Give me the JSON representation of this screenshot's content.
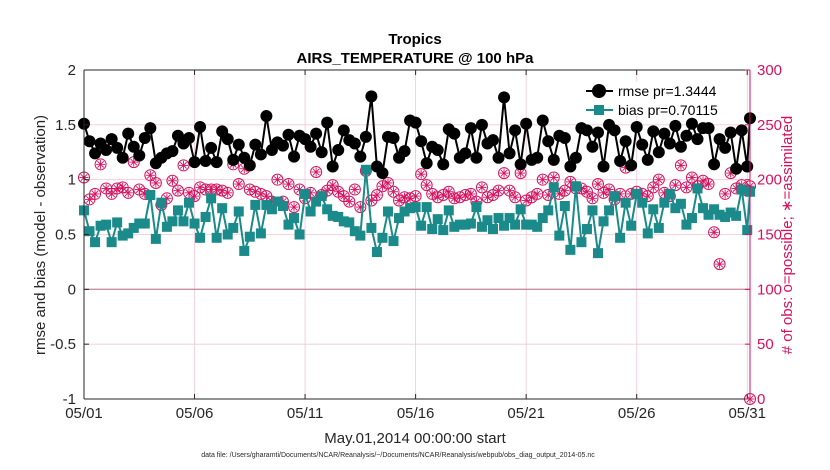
{
  "chart_data": {
    "type": "line",
    "title": "Tropics",
    "subtitle": "AIRS_TEMPERATURE @ 100 hPa",
    "xlabel": "May.01,2014 00:00:00 start",
    "ylabel": "rmse and bias (model - observation)",
    "ylabel_right": "# of obs: o=possible; ∗=assimilated",
    "footnote": "data file: /Users/gharamti/Documents/NCAR/Reanalysis/~/Documents/NCAR/Reanalysis/webpub/obs_diag_output_2014-05.nc",
    "x_tick_labels": [
      "05/01",
      "05/06",
      "05/11",
      "05/16",
      "05/21",
      "05/26",
      "05/31"
    ],
    "x_tick_days": [
      1,
      6,
      11,
      16,
      21,
      26,
      31
    ],
    "xlim": [
      1,
      31.125
    ],
    "ylim": [
      -1,
      2
    ],
    "y_ticks": [
      -1,
      -0.5,
      0,
      0.5,
      1,
      1.5,
      2
    ],
    "y_tick_labels": [
      "-1",
      "-0.5",
      "0",
      "0.5",
      "1",
      "1.5",
      "2"
    ],
    "ylim_right": [
      0,
      300
    ],
    "y_ticks_right": [
      0,
      50,
      100,
      150,
      200,
      250,
      300
    ],
    "y_tick_labels_right": [
      "0",
      "50",
      "100",
      "150",
      "200",
      "250",
      "300"
    ],
    "grid": true,
    "legend_position": "top-right",
    "zero_line": 0,
    "colors": {
      "rmse": "#000000",
      "bias": "#1a8a8a",
      "obs": "#d6125f",
      "grid": "#f2c6d6",
      "axis": "#262626"
    },
    "series": [
      {
        "name": "rmse pr=1.3444",
        "axis": "left",
        "color": "#000000",
        "marker": "circle",
        "x": [
          1.0,
          1.25,
          1.5,
          1.75,
          2.0,
          2.25,
          2.5,
          2.75,
          3.0,
          3.25,
          3.5,
          3.75,
          4.0,
          4.25,
          4.5,
          4.75,
          5.0,
          5.25,
          5.5,
          5.75,
          6.0,
          6.25,
          6.5,
          6.75,
          7.0,
          7.25,
          7.5,
          7.75,
          8.0,
          8.25,
          8.5,
          8.75,
          9.0,
          9.25,
          9.5,
          9.75,
          10.0,
          10.25,
          10.5,
          10.75,
          11.0,
          11.25,
          11.5,
          11.75,
          12.0,
          12.25,
          12.5,
          12.75,
          13.0,
          13.25,
          13.5,
          13.75,
          14.0,
          14.25,
          14.5,
          14.75,
          15.0,
          15.25,
          15.5,
          15.75,
          16.0,
          16.25,
          16.5,
          16.75,
          17.0,
          17.25,
          17.5,
          17.75,
          18.0,
          18.25,
          18.5,
          18.75,
          19.0,
          19.25,
          19.5,
          19.75,
          20.0,
          20.25,
          20.5,
          20.75,
          21.0,
          21.25,
          21.5,
          21.75,
          22.0,
          22.25,
          22.5,
          22.75,
          23.0,
          23.25,
          23.5,
          23.75,
          24.0,
          24.25,
          24.5,
          24.75,
          25.0,
          25.25,
          25.5,
          25.75,
          26.0,
          26.25,
          26.5,
          26.75,
          27.0,
          27.25,
          27.5,
          27.75,
          28.0,
          28.25,
          28.5,
          28.75,
          29.0,
          29.25,
          29.5,
          29.75,
          30.0,
          30.25,
          30.5,
          30.75,
          31.0,
          31.125
        ],
        "y": [
          1.51,
          1.35,
          1.24,
          1.33,
          1.27,
          1.37,
          1.29,
          1.2,
          1.42,
          1.3,
          1.22,
          1.38,
          1.47,
          1.15,
          1.2,
          1.24,
          1.26,
          1.4,
          1.33,
          1.38,
          1.16,
          1.48,
          1.17,
          1.29,
          1.16,
          1.44,
          1.37,
          1.18,
          1.32,
          1.2,
          1.13,
          1.32,
          1.23,
          1.58,
          1.27,
          1.34,
          1.31,
          1.41,
          1.21,
          1.4,
          1.37,
          1.3,
          1.42,
          1.25,
          1.52,
          1.12,
          1.27,
          1.45,
          1.36,
          1.33,
          1.21,
          1.39,
          1.76,
          1.12,
          1.06,
          1.39,
          1.38,
          1.2,
          1.26,
          1.54,
          1.52,
          1.35,
          1.15,
          1.3,
          1.27,
          1.14,
          1.46,
          1.42,
          1.2,
          1.24,
          1.47,
          1.2,
          1.5,
          1.33,
          1.36,
          1.2,
          1.75,
          1.24,
          1.45,
          1.14,
          1.51,
          1.18,
          1.2,
          1.54,
          1.35,
          1.18,
          1.4,
          1.38,
          1.12,
          1.2,
          1.47,
          1.45,
          1.3,
          1.43,
          1.12,
          1.5,
          1.45,
          1.17,
          1.35,
          1.13,
          1.48,
          1.32,
          1.18,
          1.44,
          1.25,
          1.42,
          1.33,
          1.49,
          1.3,
          1.4,
          1.51,
          1.37,
          1.47,
          1.47,
          1.14,
          1.37,
          1.29,
          1.43,
          1.1,
          1.45,
          1.12,
          1.56
        ]
      },
      {
        "name": "bias pr=0.70115",
        "axis": "left",
        "color": "#1a8a8a",
        "marker": "square",
        "x": [
          1.0,
          1.25,
          1.5,
          1.75,
          2.0,
          2.25,
          2.5,
          2.75,
          3.0,
          3.25,
          3.5,
          3.75,
          4.0,
          4.25,
          4.5,
          4.75,
          5.0,
          5.25,
          5.5,
          5.75,
          6.0,
          6.25,
          6.5,
          6.75,
          7.0,
          7.25,
          7.5,
          7.75,
          8.0,
          8.25,
          8.5,
          8.75,
          9.0,
          9.25,
          9.5,
          9.75,
          10.0,
          10.25,
          10.5,
          10.75,
          11.0,
          11.25,
          11.5,
          11.75,
          12.0,
          12.25,
          12.5,
          12.75,
          13.0,
          13.25,
          13.5,
          13.75,
          14.0,
          14.25,
          14.5,
          14.75,
          15.0,
          15.25,
          15.5,
          15.75,
          16.0,
          16.25,
          16.5,
          16.75,
          17.0,
          17.25,
          17.5,
          17.75,
          18.0,
          18.25,
          18.5,
          18.75,
          19.0,
          19.25,
          19.5,
          19.75,
          20.0,
          20.25,
          20.5,
          20.75,
          21.0,
          21.25,
          21.5,
          21.75,
          22.0,
          22.25,
          22.5,
          22.75,
          23.0,
          23.25,
          23.5,
          23.75,
          24.0,
          24.25,
          24.5,
          24.75,
          25.0,
          25.25,
          25.5,
          25.75,
          26.0,
          26.25,
          26.5,
          26.75,
          27.0,
          27.25,
          27.5,
          27.75,
          28.0,
          28.25,
          28.5,
          28.75,
          29.0,
          29.25,
          29.5,
          29.75,
          30.0,
          30.25,
          30.5,
          30.75,
          31.0,
          31.125
        ],
        "y": [
          0.72,
          0.53,
          0.43,
          0.58,
          0.59,
          0.43,
          0.61,
          0.49,
          0.51,
          0.56,
          0.6,
          0.6,
          0.86,
          0.46,
          0.79,
          0.57,
          0.62,
          0.72,
          0.62,
          0.79,
          0.6,
          0.47,
          0.66,
          0.83,
          0.47,
          0.74,
          0.5,
          0.56,
          0.71,
          0.35,
          0.48,
          0.77,
          0.51,
          0.77,
          0.73,
          0.8,
          0.76,
          0.59,
          0.65,
          0.5,
          0.87,
          0.71,
          0.8,
          0.85,
          0.73,
          0.67,
          0.66,
          0.62,
          0.61,
          0.53,
          0.49,
          1.09,
          0.56,
          0.34,
          0.47,
          0.71,
          0.44,
          0.65,
          0.71,
          0.74,
          0.75,
          0.58,
          0.75,
          0.55,
          0.64,
          0.54,
          0.72,
          0.57,
          0.59,
          0.59,
          0.6,
          0.75,
          0.57,
          0.63,
          0.55,
          0.65,
          0.58,
          0.65,
          0.59,
          0.73,
          0.59,
          0.59,
          0.57,
          0.65,
          0.72,
          0.93,
          0.49,
          0.76,
          0.36,
          0.94,
          0.43,
          0.55,
          0.72,
          0.33,
          0.62,
          0.72,
          0.85,
          0.47,
          0.79,
          0.58,
          0.87,
          0.79,
          0.51,
          0.73,
          0.56,
          0.79,
          0.87,
          0.74,
          0.78,
          0.59,
          0.65,
          0.92,
          0.74,
          0.68,
          0.73,
          0.68,
          0.66,
          0.7,
          0.67,
          0.91,
          0.54,
          0.89
        ]
      },
      {
        "name": "possible",
        "axis": "right",
        "color": "#d6125f",
        "marker": "circle-open",
        "x": [
          1.0,
          1.25,
          1.5,
          1.75,
          2.0,
          2.25,
          2.5,
          2.75,
          3.0,
          3.25,
          3.5,
          3.75,
          4.0,
          4.25,
          4.5,
          4.75,
          5.0,
          5.25,
          5.5,
          5.75,
          6.0,
          6.25,
          6.5,
          6.75,
          7.0,
          7.25,
          7.5,
          7.75,
          8.0,
          8.25,
          8.5,
          8.75,
          9.0,
          9.25,
          9.5,
          9.75,
          10.0,
          10.25,
          10.5,
          10.75,
          11.0,
          11.25,
          11.5,
          11.75,
          12.0,
          12.25,
          12.5,
          12.75,
          13.0,
          13.25,
          13.5,
          13.75,
          14.0,
          14.25,
          14.5,
          14.75,
          15.0,
          15.25,
          15.5,
          15.75,
          16.0,
          16.25,
          16.5,
          16.75,
          17.0,
          17.25,
          17.5,
          17.75,
          18.0,
          18.25,
          18.5,
          18.75,
          19.0,
          19.25,
          19.5,
          19.75,
          20.0,
          20.25,
          20.5,
          20.75,
          21.0,
          21.25,
          21.5,
          21.75,
          22.0,
          22.25,
          22.5,
          22.75,
          23.0,
          23.25,
          23.5,
          23.75,
          24.0,
          24.25,
          24.5,
          24.75,
          25.0,
          25.25,
          25.5,
          25.75,
          26.0,
          26.25,
          26.5,
          26.75,
          27.0,
          27.25,
          27.5,
          27.75,
          28.0,
          28.25,
          28.5,
          28.75,
          29.0,
          29.25,
          29.5,
          29.75,
          30.0,
          30.25,
          30.5,
          30.75,
          31.0,
          31.125
        ],
        "y": [
          202,
          182,
          187,
          214,
          192,
          187,
          192,
          193,
          188,
          216,
          191,
          187,
          204,
          197,
          177,
          183,
          199,
          190,
          213,
          188,
          185,
          193,
          191,
          191,
          191,
          190,
          188,
          214,
          196,
          210,
          191,
          189,
          187,
          185,
          180,
          200,
          180,
          196,
          175,
          191,
          183,
          188,
          207,
          186,
          190,
          195,
          189,
          185,
          180,
          191,
          175,
          208,
          181,
          186,
          194,
          197,
          189,
          181,
          184,
          183,
          185,
          205,
          195,
          187,
          184,
          186,
          189,
          183,
          184,
          186,
          187,
          180,
          193,
          184,
          186,
          190,
          206,
          190,
          184,
          206,
          181,
          184,
          187,
          200,
          186,
          202,
          187,
          190,
          198,
          192,
          192,
          189,
          183,
          196,
          188,
          191,
          182,
          187,
          211,
          187,
          189,
          187,
          185,
          193,
          200,
          188,
          185,
          195,
          213,
          193,
          202,
          194,
          199,
          196,
          152,
          123,
          187,
          206,
          192,
          195,
          190,
          194
        ]
      },
      {
        "name": "assimilated",
        "axis": "right",
        "color": "#d6125f",
        "marker": "asterisk",
        "x": [
          1.0,
          1.25,
          1.5,
          1.75,
          2.0,
          2.25,
          2.5,
          2.75,
          3.0,
          3.25,
          3.5,
          3.75,
          4.0,
          4.25,
          4.5,
          4.75,
          5.0,
          5.25,
          5.5,
          5.75,
          6.0,
          6.25,
          6.5,
          6.75,
          7.0,
          7.25,
          7.5,
          7.75,
          8.0,
          8.25,
          8.5,
          8.75,
          9.0,
          9.25,
          9.5,
          9.75,
          10.0,
          10.25,
          10.5,
          10.75,
          11.0,
          11.25,
          11.5,
          11.75,
          12.0,
          12.25,
          12.5,
          12.75,
          13.0,
          13.25,
          13.5,
          13.75,
          14.0,
          14.25,
          14.5,
          14.75,
          15.0,
          15.25,
          15.5,
          15.75,
          16.0,
          16.25,
          16.5,
          16.75,
          17.0,
          17.25,
          17.5,
          17.75,
          18.0,
          18.25,
          18.5,
          18.75,
          19.0,
          19.25,
          19.5,
          19.75,
          20.0,
          20.25,
          20.5,
          20.75,
          21.0,
          21.25,
          21.5,
          21.75,
          22.0,
          22.25,
          22.5,
          22.75,
          23.0,
          23.25,
          23.5,
          23.75,
          24.0,
          24.25,
          24.5,
          24.75,
          25.0,
          25.25,
          25.5,
          25.75,
          26.0,
          26.25,
          26.5,
          26.75,
          27.0,
          27.25,
          27.5,
          27.75,
          28.0,
          28.25,
          28.5,
          28.75,
          29.0,
          29.25,
          29.5,
          29.75,
          30.0,
          30.25,
          30.5,
          30.75,
          31.0,
          31.125
        ],
        "y": [
          202,
          182,
          187,
          214,
          192,
          187,
          192,
          193,
          188,
          216,
          191,
          187,
          204,
          197,
          177,
          183,
          199,
          190,
          213,
          188,
          185,
          193,
          191,
          191,
          191,
          190,
          188,
          214,
          196,
          210,
          191,
          189,
          187,
          185,
          180,
          200,
          180,
          196,
          175,
          191,
          183,
          188,
          207,
          186,
          190,
          195,
          189,
          185,
          180,
          191,
          175,
          208,
          181,
          186,
          194,
          197,
          189,
          181,
          184,
          183,
          185,
          205,
          195,
          187,
          184,
          186,
          189,
          183,
          184,
          186,
          187,
          180,
          193,
          184,
          186,
          190,
          206,
          190,
          184,
          206,
          181,
          184,
          187,
          200,
          186,
          202,
          187,
          190,
          198,
          192,
          192,
          189,
          183,
          196,
          188,
          191,
          182,
          187,
          211,
          187,
          189,
          187,
          185,
          193,
          200,
          188,
          185,
          195,
          213,
          193,
          202,
          194,
          199,
          196,
          152,
          123,
          187,
          206,
          192,
          195,
          190,
          194
        ]
      }
    ],
    "extra_points": [
      {
        "series": "possible",
        "x": 31.125,
        "y": 0
      }
    ]
  }
}
